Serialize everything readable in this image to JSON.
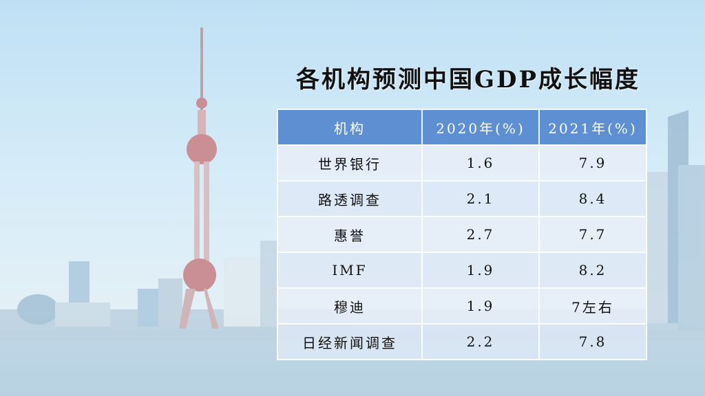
{
  "title": "各机构预测中国GDP成长幅度",
  "table": {
    "headers": [
      "机构",
      "2020年(%)",
      "2021年(%)"
    ],
    "rows": [
      [
        "世界银行",
        "1.6",
        "7.9"
      ],
      [
        "路透调查",
        "2.1",
        "8.4"
      ],
      [
        "惠誉",
        "2.7",
        "7.7"
      ],
      [
        "IMF",
        "1.9",
        "8.2"
      ],
      [
        "穆迪",
        "1.9",
        "7左右"
      ],
      [
        "日经新闻调查",
        "2.2",
        "7.8"
      ]
    ]
  },
  "colors": {
    "header": "#5f8fd3",
    "sky": "#bfe0f4"
  }
}
